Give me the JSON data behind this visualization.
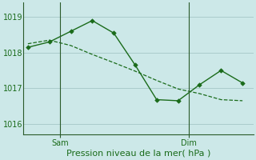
{
  "title": "",
  "xlabel": "Pression niveau de la mer( hPa )",
  "background_color": "#cce8e8",
  "grid_color": "#aacccc",
  "line_color": "#1a6b1a",
  "marker_color": "#1a6b1a",
  "ylim": [
    1015.7,
    1019.4
  ],
  "yticks": [
    1016,
    1017,
    1018,
    1019
  ],
  "series1_x": [
    0,
    1,
    2,
    3,
    4,
    5,
    6,
    7,
    8,
    9,
    10
  ],
  "series1_y": [
    1018.15,
    1018.3,
    1018.6,
    1018.9,
    1018.55,
    1017.65,
    1016.68,
    1016.65,
    1017.1,
    1017.5,
    1017.15
  ],
  "series2_x": [
    0,
    1,
    2,
    3,
    4,
    5,
    6,
    7,
    8,
    9,
    10
  ],
  "series2_y": [
    1018.25,
    1018.35,
    1018.2,
    1017.95,
    1017.72,
    1017.48,
    1017.22,
    1016.98,
    1016.85,
    1016.68,
    1016.65
  ],
  "xtick_positions": [
    1.5,
    7.5
  ],
  "xtick_labels": [
    "Sam",
    "Dim"
  ],
  "vline_positions": [
    1.5,
    7.5
  ],
  "font_color": "#1a6b1a",
  "spine_color": "#2a5a2a",
  "xlabel_fontsize": 8,
  "tick_fontsize": 7
}
